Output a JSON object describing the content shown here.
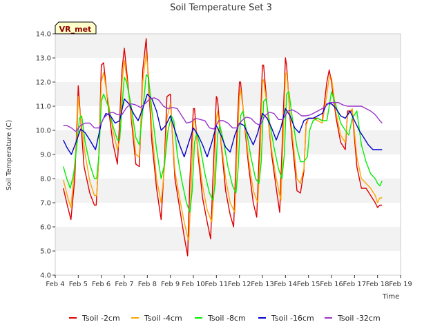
{
  "chart_data": {
    "type": "line",
    "title": "Soil Temperature Set 3",
    "xlabel": "Time",
    "ylabel": "Soil Temperature (C)",
    "badge": "VR_met",
    "ylim": [
      4.0,
      14.0
    ],
    "xlim": [
      4,
      19
    ],
    "yticks": [
      "4.0",
      "5.0",
      "6.0",
      "7.0",
      "8.0",
      "9.0",
      "10.0",
      "11.0",
      "12.0",
      "13.0",
      "14.0"
    ],
    "xticks": [
      "Feb 4",
      "Feb 5",
      "Feb 6",
      "Feb 7",
      "Feb 8",
      "Feb 9",
      "Feb 10",
      "Feb 11",
      "Feb 12",
      "Feb 13",
      "Feb 14",
      "Feb 15",
      "Feb 16",
      "Feb 17",
      "Feb 18",
      "Feb 19"
    ],
    "grid": "horizontal bands",
    "legend_position": "bottom",
    "series": [
      {
        "name": "Tsoil -2cm",
        "color": "#dd0000",
        "x": [
          4.35,
          4.55,
          4.68,
          4.85,
          4.95,
          5.0,
          5.1,
          5.25,
          5.5,
          5.7,
          5.78,
          5.9,
          6.0,
          6.1,
          6.3,
          6.5,
          6.7,
          6.75,
          6.9,
          7.0,
          7.1,
          7.3,
          7.5,
          7.65,
          7.8,
          7.95,
          8.05,
          8.2,
          8.4,
          8.6,
          8.75,
          8.85,
          9.0,
          9.05,
          9.2,
          9.4,
          9.6,
          9.75,
          9.85,
          10.0,
          10.05,
          10.2,
          10.4,
          10.6,
          10.75,
          10.85,
          11.0,
          11.05,
          11.2,
          11.4,
          11.6,
          11.75,
          11.9,
          12.0,
          12.05,
          12.2,
          12.4,
          12.6,
          12.75,
          12.9,
          13.0,
          13.05,
          13.2,
          13.4,
          13.6,
          13.75,
          13.9,
          14.0,
          14.05,
          14.2,
          14.4,
          14.5,
          14.65,
          14.8,
          14.9,
          15.0,
          15.2,
          15.4,
          15.6,
          15.8,
          15.9,
          16.0,
          16.2,
          16.4,
          16.6,
          16.7,
          16.9,
          17.1,
          17.3,
          17.5,
          17.7,
          17.9,
          18.0,
          18.1,
          18.2
        ],
        "y": [
          7.6,
          6.8,
          6.3,
          8.0,
          10.5,
          11.85,
          10.5,
          8.5,
          7.4,
          6.9,
          6.9,
          9.0,
          12.7,
          12.8,
          11.0,
          9.5,
          8.6,
          9.5,
          12.5,
          13.4,
          12.5,
          10.5,
          8.6,
          8.5,
          12.5,
          13.8,
          12.0,
          9.5,
          7.6,
          6.3,
          8.8,
          11.4,
          11.5,
          10.5,
          8.0,
          6.8,
          5.6,
          4.8,
          8.0,
          10.9,
          10.9,
          9.0,
          7.2,
          6.2,
          5.5,
          8.0,
          11.4,
          11.3,
          9.5,
          7.5,
          6.5,
          6.0,
          10.0,
          12.0,
          12.0,
          10.5,
          8.5,
          7.0,
          6.4,
          10.0,
          12.7,
          12.7,
          11.0,
          9.0,
          7.6,
          6.6,
          10.5,
          13.0,
          12.7,
          10.5,
          8.5,
          7.5,
          7.4,
          8.3,
          10.3,
          10.5,
          10.5,
          10.5,
          10.4,
          12.0,
          12.5,
          12.0,
          10.5,
          9.5,
          9.2,
          10.8,
          10.8,
          8.5,
          7.6,
          7.6,
          7.3,
          7.0,
          6.8,
          6.9,
          6.9
        ]
      },
      {
        "name": "Tsoil -4cm",
        "color": "#ffa500",
        "x": [
          4.35,
          4.55,
          4.68,
          4.85,
          4.95,
          5.0,
          5.1,
          5.3,
          5.5,
          5.7,
          5.8,
          5.9,
          6.0,
          6.1,
          6.3,
          6.5,
          6.7,
          6.8,
          6.9,
          7.0,
          7.1,
          7.3,
          7.5,
          7.65,
          7.8,
          7.95,
          8.05,
          8.2,
          8.4,
          8.6,
          8.75,
          8.85,
          9.0,
          9.05,
          9.2,
          9.4,
          9.6,
          9.8,
          9.9,
          10.0,
          10.05,
          10.2,
          10.4,
          10.6,
          10.8,
          10.9,
          11.0,
          11.05,
          11.2,
          11.4,
          11.6,
          11.8,
          11.9,
          12.0,
          12.05,
          12.2,
          12.4,
          12.6,
          12.8,
          12.9,
          13.0,
          13.05,
          13.2,
          13.4,
          13.6,
          13.8,
          13.9,
          14.0,
          14.05,
          14.2,
          14.4,
          14.5,
          14.65,
          14.8,
          14.9,
          15.0,
          15.2,
          15.4,
          15.6,
          15.8,
          15.9,
          16.0,
          16.2,
          16.4,
          16.6,
          16.7,
          16.9,
          17.1,
          17.3,
          17.5,
          17.7,
          17.9,
          18.0,
          18.1,
          18.2
        ],
        "y": [
          7.95,
          7.2,
          6.8,
          8.5,
          10.0,
          11.4,
          10.5,
          9.0,
          7.9,
          7.3,
          7.3,
          9.0,
          12.0,
          12.4,
          11.2,
          10.0,
          9.2,
          9.6,
          12.0,
          12.9,
          12.2,
          10.7,
          9.0,
          8.9,
          12.0,
          13.2,
          12.3,
          10.0,
          8.0,
          7.0,
          8.5,
          10.5,
          11.1,
          10.5,
          8.3,
          7.2,
          6.2,
          5.4,
          7.5,
          10.4,
          10.5,
          9.2,
          7.7,
          6.7,
          6.2,
          7.5,
          10.5,
          10.8,
          9.6,
          8.0,
          7.0,
          6.6,
          9.2,
          11.4,
          11.7,
          10.6,
          8.8,
          7.5,
          7.0,
          9.0,
          12.0,
          12.1,
          11.0,
          9.2,
          8.0,
          7.1,
          9.7,
          12.3,
          12.4,
          10.7,
          8.9,
          8.0,
          7.8,
          8.4,
          10.2,
          10.5,
          10.5,
          10.4,
          10.3,
          11.5,
          12.2,
          12.2,
          10.7,
          9.8,
          9.5,
          10.6,
          10.9,
          8.9,
          8.0,
          7.8,
          7.6,
          7.3,
          7.0,
          7.2,
          7.2
        ]
      },
      {
        "name": "Tsoil -8cm",
        "color": "#00ee00",
        "x": [
          4.35,
          4.5,
          4.65,
          4.8,
          4.95,
          5.05,
          5.15,
          5.3,
          5.5,
          5.7,
          5.8,
          5.9,
          6.0,
          6.1,
          6.3,
          6.5,
          6.7,
          6.8,
          6.9,
          7.0,
          7.1,
          7.3,
          7.5,
          7.65,
          7.8,
          7.95,
          8.05,
          8.2,
          8.4,
          8.6,
          8.75,
          8.9,
          9.05,
          9.15,
          9.3,
          9.5,
          9.7,
          9.85,
          9.95,
          10.05,
          10.15,
          10.3,
          10.5,
          10.7,
          10.85,
          10.95,
          11.05,
          11.15,
          11.3,
          11.5,
          11.7,
          11.85,
          11.95,
          12.05,
          12.15,
          12.3,
          12.5,
          12.7,
          12.85,
          12.95,
          13.05,
          13.15,
          13.3,
          13.5,
          13.7,
          13.85,
          13.95,
          14.05,
          14.15,
          14.3,
          14.5,
          14.65,
          14.8,
          14.95,
          15.05,
          15.2,
          15.4,
          15.6,
          15.8,
          15.9,
          16.0,
          16.2,
          16.4,
          16.6,
          16.75,
          16.9,
          17.1,
          17.3,
          17.5,
          17.7,
          17.9,
          18.0,
          18.1,
          18.2
        ],
        "y": [
          8.5,
          8.0,
          7.6,
          8.2,
          9.5,
          10.5,
          10.6,
          9.5,
          8.6,
          8.0,
          8.0,
          9.0,
          11.2,
          11.5,
          11.0,
          10.2,
          9.6,
          9.6,
          11.0,
          12.2,
          12.0,
          11.0,
          9.7,
          9.4,
          10.8,
          12.3,
          12.2,
          10.8,
          9.2,
          8.0,
          8.6,
          10.0,
          10.6,
          10.4,
          9.0,
          7.9,
          7.0,
          6.6,
          7.5,
          9.5,
          9.9,
          9.3,
          8.2,
          7.4,
          7.1,
          7.8,
          9.8,
          10.2,
          9.6,
          8.5,
          7.7,
          7.4,
          8.5,
          10.6,
          10.8,
          10.0,
          8.9,
          8.0,
          7.8,
          8.7,
          11.2,
          11.3,
          10.4,
          9.3,
          8.4,
          8.0,
          9.0,
          11.5,
          11.6,
          10.5,
          9.3,
          8.7,
          8.7,
          8.9,
          10.0,
          10.4,
          10.5,
          10.4,
          10.4,
          11.0,
          11.6,
          11.0,
          10.3,
          10.0,
          9.8,
          10.5,
          10.8,
          9.4,
          8.7,
          8.2,
          8.0,
          7.8,
          7.7,
          7.9
        ]
      },
      {
        "name": "Tsoil -16cm",
        "color": "#0000cc",
        "x": [
          4.35,
          4.5,
          4.7,
          4.9,
          5.1,
          5.3,
          5.5,
          5.75,
          6.0,
          6.2,
          6.4,
          6.6,
          6.8,
          7.0,
          7.2,
          7.4,
          7.6,
          7.8,
          8.0,
          8.2,
          8.4,
          8.6,
          8.8,
          9.0,
          9.2,
          9.4,
          9.6,
          9.8,
          10.0,
          10.2,
          10.4,
          10.6,
          10.8,
          11.0,
          11.2,
          11.4,
          11.6,
          11.8,
          12.0,
          12.2,
          12.4,
          12.6,
          12.8,
          13.0,
          13.2,
          13.4,
          13.6,
          13.8,
          14.0,
          14.2,
          14.4,
          14.6,
          14.8,
          15.0,
          15.2,
          15.4,
          15.6,
          15.8,
          16.0,
          16.2,
          16.4,
          16.6,
          16.8,
          17.0,
          17.2,
          17.4,
          17.6,
          17.8,
          18.0,
          18.2
        ],
        "y": [
          9.6,
          9.3,
          9.0,
          9.5,
          10.05,
          9.9,
          9.6,
          9.2,
          10.3,
          10.7,
          10.6,
          10.3,
          10.4,
          11.3,
          11.1,
          10.7,
          10.4,
          10.9,
          11.5,
          11.3,
          10.8,
          10.0,
          10.2,
          10.6,
          10.0,
          9.4,
          8.9,
          9.5,
          10.1,
          9.8,
          9.4,
          8.9,
          9.5,
          10.2,
          9.8,
          9.3,
          9.1,
          9.8,
          10.3,
          10.2,
          9.8,
          9.4,
          9.9,
          10.7,
          10.5,
          10.1,
          9.6,
          10.1,
          10.9,
          10.6,
          10.1,
          9.9,
          10.4,
          10.5,
          10.5,
          10.6,
          10.7,
          11.1,
          11.1,
          10.9,
          10.6,
          10.5,
          10.8,
          10.4,
          10.0,
          9.7,
          9.4,
          9.2,
          9.2,
          9.2
        ]
      },
      {
        "name": "Tsoil -32cm",
        "color": "#9933cc",
        "x": [
          4.35,
          4.5,
          4.7,
          4.9,
          5.1,
          5.3,
          5.5,
          5.7,
          5.9,
          6.1,
          6.3,
          6.5,
          6.7,
          6.9,
          7.1,
          7.3,
          7.5,
          7.7,
          7.9,
          8.1,
          8.3,
          8.5,
          8.7,
          8.9,
          9.1,
          9.3,
          9.5,
          9.7,
          9.9,
          10.1,
          10.3,
          10.5,
          10.7,
          10.9,
          11.1,
          11.3,
          11.5,
          11.7,
          11.9,
          12.1,
          12.3,
          12.5,
          12.7,
          12.9,
          13.1,
          13.3,
          13.5,
          13.7,
          13.9,
          14.1,
          14.3,
          14.5,
          14.7,
          14.9,
          15.1,
          15.3,
          15.5,
          15.7,
          15.9,
          16.1,
          16.3,
          16.5,
          16.7,
          16.9,
          17.1,
          17.3,
          17.5,
          17.7,
          17.9,
          18.1,
          18.2
        ],
        "y": [
          10.2,
          10.2,
          10.1,
          9.95,
          10.2,
          10.3,
          10.3,
          10.1,
          10.1,
          10.5,
          10.7,
          10.75,
          10.65,
          10.65,
          10.95,
          11.1,
          11.05,
          10.95,
          11.1,
          11.3,
          11.35,
          11.25,
          11.0,
          10.9,
          10.95,
          10.9,
          10.6,
          10.3,
          10.35,
          10.5,
          10.45,
          10.4,
          10.1,
          10.05,
          10.4,
          10.4,
          10.3,
          10.1,
          10.1,
          10.4,
          10.55,
          10.5,
          10.3,
          10.2,
          10.6,
          10.75,
          10.7,
          10.45,
          10.45,
          10.8,
          10.85,
          10.75,
          10.6,
          10.6,
          10.65,
          10.75,
          10.85,
          10.95,
          11.15,
          11.15,
          11.15,
          11.05,
          11.0,
          11.0,
          11.0,
          11.0,
          10.9,
          10.8,
          10.65,
          10.4,
          10.3
        ]
      }
    ]
  }
}
